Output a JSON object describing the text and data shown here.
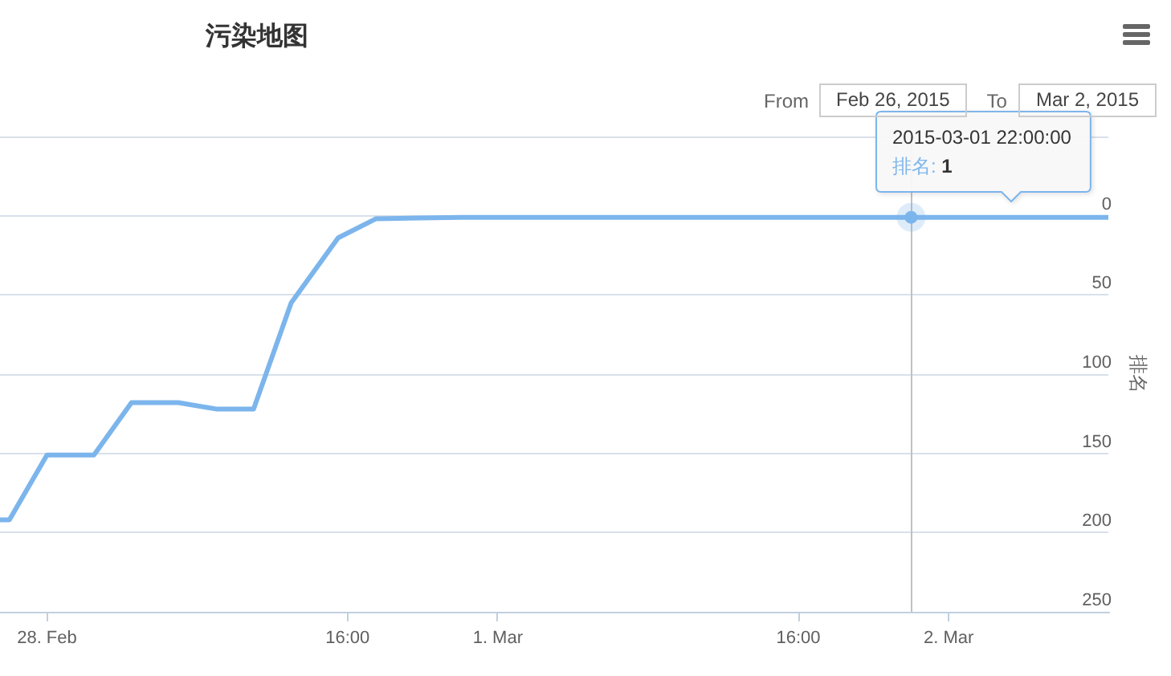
{
  "chart_data": {
    "type": "line",
    "title": "污染地图",
    "ylabel": "排名",
    "x": [
      "2015-02-27T21:30",
      "2015-02-27T22:00",
      "2015-02-28T00:00",
      "2015-02-28T02:30",
      "2015-02-28T04:30",
      "2015-02-28T07:00",
      "2015-02-28T09:00",
      "2015-02-28T11:00",
      "2015-02-28T13:00",
      "2015-02-28T15:30",
      "2015-02-28T17:30",
      "2015-02-28T22:00",
      "2015-03-01T22:00",
      "2015-03-02T08:30"
    ],
    "series": [
      {
        "color": "#7cb5ec",
        "values": [
          192,
          192,
          151,
          151,
          118,
          118,
          122,
          122,
          55,
          14,
          2,
          1,
          1,
          1
        ]
      }
    ],
    "xlim": [
      "2015-02-27T21:30",
      "2015-03-02T08:30"
    ],
    "xticks": [
      {
        "value": "2015-02-28",
        "label": "28. Feb"
      },
      {
        "value": "2015-02-28T16:00",
        "label": "16:00"
      },
      {
        "value": "2015-03-01",
        "label": "1. Mar"
      },
      {
        "value": "2015-03-01T16:00",
        "label": "16:00"
      },
      {
        "value": "2015-03-02",
        "label": "2. Mar"
      }
    ],
    "ylim": [
      250,
      -50
    ],
    "yticks": [
      {
        "value": -50,
        "label": null
      },
      0,
      50,
      100,
      150,
      200,
      250
    ],
    "grid": "y",
    "ref_lines": [
      {
        "axis": "x",
        "value": "2015-03-01T22:00",
        "color": "#c0c0c0"
      }
    ],
    "annotations": [
      "From",
      "Feb 26, 2015",
      "To",
      "Mar 2, 2015",
      {
        "text": "2015-03-01 22:00:00\n排名: 1",
        "x": "2015-03-01T22:00",
        "y": 1
      }
    ]
  }
}
